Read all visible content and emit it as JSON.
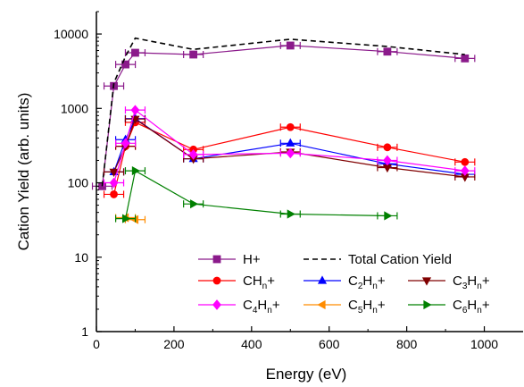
{
  "chart_data": {
    "type": "line",
    "xlabel": "Energy (eV)",
    "ylabel": "Cation Yield (arb. units)",
    "xlim": [
      0,
      1100
    ],
    "ylim": [
      1,
      20000
    ],
    "y_scale": "log",
    "x_ticks": [
      0,
      200,
      400,
      600,
      800,
      1000
    ],
    "x_tick_labels": [
      "0",
      "200",
      "400",
      "600",
      "800",
      "1000"
    ],
    "y_ticks": [
      1,
      10,
      100,
      1000,
      10000
    ],
    "y_tick_labels": [
      "1",
      "10",
      "100",
      "1000",
      "10000"
    ],
    "grid": false,
    "legend_position": "lower-right",
    "series": [
      {
        "name": "H+",
        "color": "#8b1a8b",
        "marker": "square",
        "dashed": false,
        "x": [
          15,
          45,
          75,
          100,
          250,
          500,
          750,
          950
        ],
        "y": [
          90,
          2000,
          3900,
          5600,
          5300,
          7000,
          5800,
          4700
        ]
      },
      {
        "name": "Total Cation Yield",
        "color": "#000000",
        "marker": "none",
        "dashed": true,
        "x": [
          15,
          45,
          75,
          100,
          250,
          500,
          750,
          950
        ],
        "y": [
          90,
          2200,
          5000,
          8800,
          6200,
          8500,
          6800,
          5300
        ]
      },
      {
        "name": "CH",
        "sub": "n",
        "suffix": "+",
        "color": "#ff0000",
        "marker": "circle",
        "dashed": false,
        "x": [
          45,
          75,
          100,
          250,
          500,
          750,
          950
        ],
        "y": [
          70,
          310,
          650,
          280,
          560,
          300,
          190
        ]
      },
      {
        "name": "C",
        "sub1": "2",
        "mid": "H",
        "sub": "n",
        "suffix": "+",
        "color": "#0000ff",
        "marker": "triangle-up",
        "dashed": false,
        "x": [
          45,
          75,
          100,
          250,
          500,
          750,
          950
        ],
        "y": [
          140,
          380,
          730,
          210,
          340,
          180,
          130
        ]
      },
      {
        "name": "C",
        "sub1": "3",
        "mid": "H",
        "sub": "n",
        "suffix": "+",
        "color": "#800000",
        "marker": "triangle-down",
        "dashed": false,
        "x": [
          45,
          75,
          100,
          250,
          500,
          750,
          950
        ],
        "y": [
          140,
          310,
          720,
          210,
          260,
          160,
          120
        ]
      },
      {
        "name": "C",
        "sub1": "4",
        "mid": "H",
        "sub": "n",
        "suffix": "+",
        "color": "#ff00ff",
        "marker": "diamond",
        "dashed": false,
        "x": [
          45,
          75,
          100,
          250,
          500,
          750,
          950
        ],
        "y": [
          100,
          340,
          950,
          240,
          250,
          200,
          145
        ]
      },
      {
        "name": "C",
        "sub1": "5",
        "mid": "H",
        "sub": "n",
        "suffix": "+",
        "color": "#ff8c00",
        "marker": "triangle-left",
        "dashed": false,
        "x": [
          75,
          100
        ],
        "y": [
          34,
          32
        ]
      },
      {
        "name": "C",
        "sub1": "6",
        "mid": "H",
        "sub": "n",
        "suffix": "+",
        "color": "#008000",
        "marker": "triangle-right",
        "dashed": false,
        "x": [
          75,
          100,
          250,
          500,
          750
        ],
        "y": [
          33,
          145,
          52,
          38,
          36
        ]
      }
    ]
  }
}
